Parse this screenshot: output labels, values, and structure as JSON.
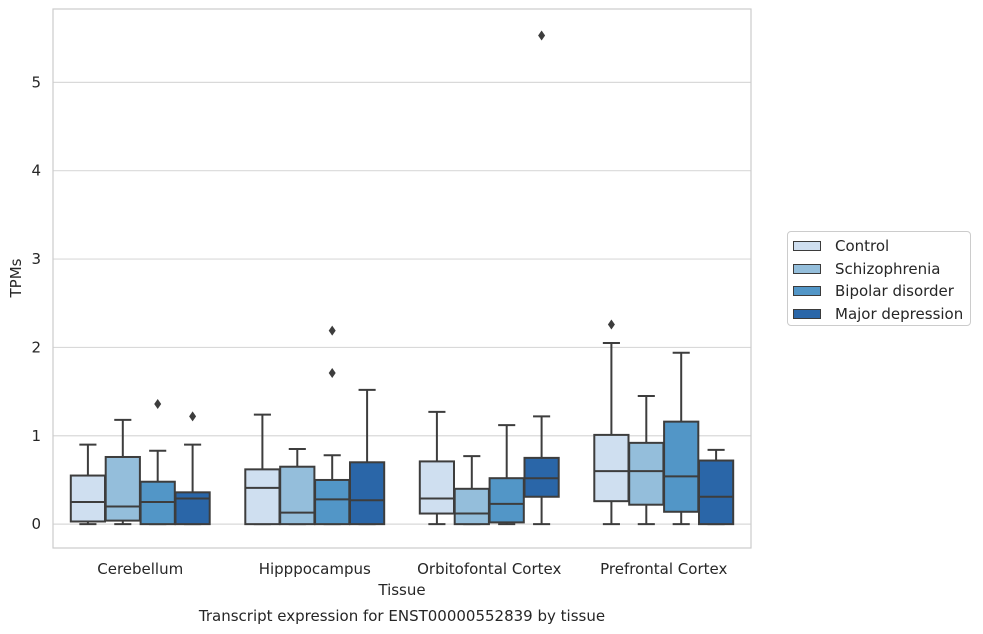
{
  "chart_data": {
    "type": "box",
    "title": "Transcript expression for ENST00000552839 by tissue",
    "xlabel": "Tissue",
    "ylabel": "TPMs",
    "ylim": [
      -0.27,
      5.83
    ],
    "yticks": [
      0,
      1,
      2,
      3,
      4,
      5
    ],
    "grid": true,
    "legend_position": "right",
    "categories": [
      "Cerebellum",
      "Hipppocampus",
      "Orbitofontal Cortex",
      "Prefrontal Cortex"
    ],
    "series": [
      {
        "name": "Control",
        "color": "#cfdff0",
        "boxes": [
          {
            "min": 0.0,
            "q1": 0.03,
            "median": 0.25,
            "q3": 0.55,
            "max": 0.9,
            "outliers": []
          },
          {
            "min": 0.0,
            "q1": 0.0,
            "median": 0.41,
            "q3": 0.62,
            "max": 1.24,
            "outliers": []
          },
          {
            "min": 0.0,
            "q1": 0.12,
            "median": 0.29,
            "q3": 0.71,
            "max": 1.27,
            "outliers": []
          },
          {
            "min": 0.0,
            "q1": 0.26,
            "median": 0.6,
            "q3": 1.01,
            "max": 2.05,
            "outliers": [
              2.26
            ]
          }
        ]
      },
      {
        "name": "Schizophrenia",
        "color": "#94bedb",
        "boxes": [
          {
            "min": 0.0,
            "q1": 0.04,
            "median": 0.2,
            "q3": 0.76,
            "max": 1.18,
            "outliers": []
          },
          {
            "min": 0.0,
            "q1": 0.0,
            "median": 0.13,
            "q3": 0.65,
            "max": 0.85,
            "outliers": []
          },
          {
            "min": 0.0,
            "q1": 0.0,
            "median": 0.12,
            "q3": 0.4,
            "max": 0.77,
            "outliers": []
          },
          {
            "min": 0.0,
            "q1": 0.22,
            "median": 0.6,
            "q3": 0.92,
            "max": 1.45,
            "outliers": []
          }
        ]
      },
      {
        "name": "Bipolar disorder",
        "color": "#5296c7",
        "boxes": [
          {
            "min": 0.0,
            "q1": 0.0,
            "median": 0.25,
            "q3": 0.48,
            "max": 0.83,
            "outliers": [
              1.36
            ]
          },
          {
            "min": 0.0,
            "q1": 0.0,
            "median": 0.28,
            "q3": 0.5,
            "max": 0.78,
            "outliers": [
              1.71,
              2.19
            ]
          },
          {
            "min": 0.0,
            "q1": 0.02,
            "median": 0.23,
            "q3": 0.52,
            "max": 1.12,
            "outliers": []
          },
          {
            "min": 0.0,
            "q1": 0.14,
            "median": 0.54,
            "q3": 1.16,
            "max": 1.94,
            "outliers": []
          }
        ]
      },
      {
        "name": "Major depression",
        "color": "#2a66a8",
        "boxes": [
          {
            "min": 0.0,
            "q1": 0.0,
            "median": 0.29,
            "q3": 0.36,
            "max": 0.9,
            "outliers": [
              1.22
            ]
          },
          {
            "min": 0.0,
            "q1": 0.0,
            "median": 0.27,
            "q3": 0.7,
            "max": 1.52,
            "outliers": []
          },
          {
            "min": 0.0,
            "q1": 0.31,
            "median": 0.52,
            "q3": 0.75,
            "max": 1.22,
            "outliers": [
              5.53
            ]
          },
          {
            "min": 0.0,
            "q1": 0.0,
            "median": 0.31,
            "q3": 0.72,
            "max": 0.84,
            "outliers": []
          }
        ]
      }
    ]
  }
}
